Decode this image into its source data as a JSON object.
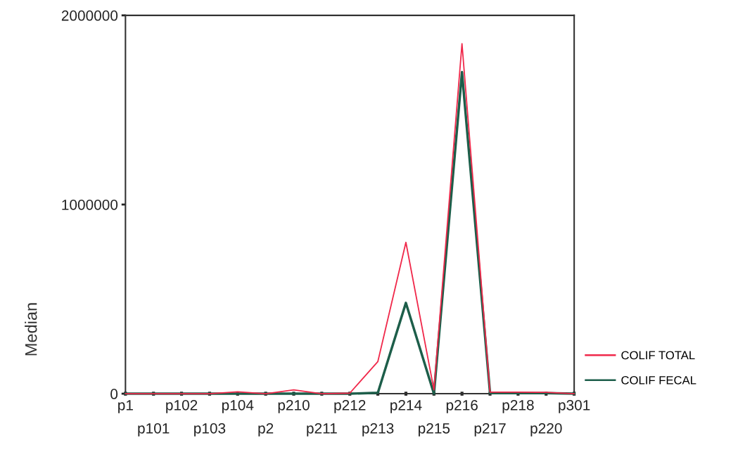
{
  "chart_data": {
    "type": "line",
    "ylabel": "Median",
    "categories": [
      "p1",
      "p101",
      "p102",
      "p103",
      "p104",
      "p2",
      "p210",
      "p211",
      "p212",
      "p213",
      "p214",
      "p215",
      "p216",
      "p217",
      "p218",
      "p220",
      "p301"
    ],
    "series": [
      {
        "name": "COLIF TOTAL",
        "color": "#f0284a",
        "values": [
          0,
          0,
          0,
          0,
          10000,
          0,
          20000,
          0,
          3000,
          170000,
          800000,
          20000,
          1850000,
          8000,
          8000,
          7000,
          0
        ]
      },
      {
        "name": "COLIF FECAL",
        "color": "#1d5e4a",
        "values": [
          0,
          0,
          0,
          0,
          0,
          0,
          0,
          0,
          0,
          5000,
          480000,
          0,
          1700000,
          3000,
          3000,
          3000,
          0
        ]
      }
    ],
    "ylim": [
      0,
      2000000
    ],
    "yticks": [
      0,
      1000000,
      2000000
    ],
    "grid": false,
    "legend": "right",
    "marker": "none",
    "line_style": "solid"
  }
}
